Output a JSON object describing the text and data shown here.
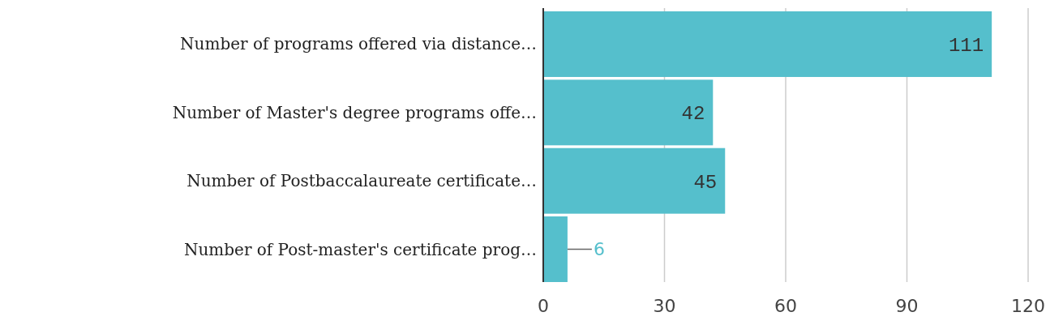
{
  "chart_data": {
    "type": "bar",
    "orientation": "horizontal",
    "categories": [
      "Number of programs offered via distance…",
      "Number of Master's degree programs offe…",
      "Number of Postbaccalaureate certificate…",
      "Number of Post-master's certificate prog…"
    ],
    "values": [
      111,
      42,
      45,
      6
    ],
    "color": "#55bfcc",
    "xlim": [
      0,
      120
    ],
    "xticks": [
      0,
      30,
      60,
      90,
      120
    ],
    "grid": "x",
    "data_labels": true
  }
}
